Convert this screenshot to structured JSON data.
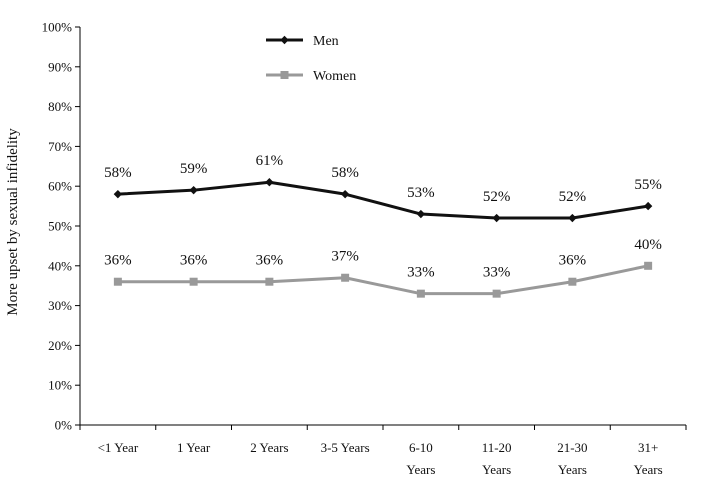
{
  "chart_data": {
    "type": "line",
    "ylabel": "More upset by sexual infidelity",
    "xlabel": "",
    "ylim": [
      0,
      100
    ],
    "y_ticks": [
      "0%",
      "10%",
      "20%",
      "30%",
      "40%",
      "50%",
      "60%",
      "70%",
      "80%",
      "90%",
      "100%"
    ],
    "categories": [
      [
        "<1 Year"
      ],
      [
        "1 Year"
      ],
      [
        "2 Years"
      ],
      [
        "3-5 Years"
      ],
      [
        "6-10",
        "Years"
      ],
      [
        "11-20",
        "Years"
      ],
      [
        "21-30",
        "Years"
      ],
      [
        "31+",
        "Years"
      ]
    ],
    "legend_position": "top-center",
    "grid": false,
    "series": [
      {
        "name": "Men",
        "color": "#111111",
        "marker": "diamond",
        "values": [
          58,
          59,
          61,
          58,
          53,
          52,
          52,
          55
        ],
        "labels": [
          "58%",
          "59%",
          "61%",
          "58%",
          "53%",
          "52%",
          "52%",
          "55%"
        ]
      },
      {
        "name": "Women",
        "color": "#999999",
        "marker": "square",
        "values": [
          36,
          36,
          36,
          37,
          33,
          33,
          36,
          40
        ],
        "labels": [
          "36%",
          "36%",
          "36%",
          "37%",
          "33%",
          "33%",
          "36%",
          "40%"
        ]
      }
    ]
  }
}
